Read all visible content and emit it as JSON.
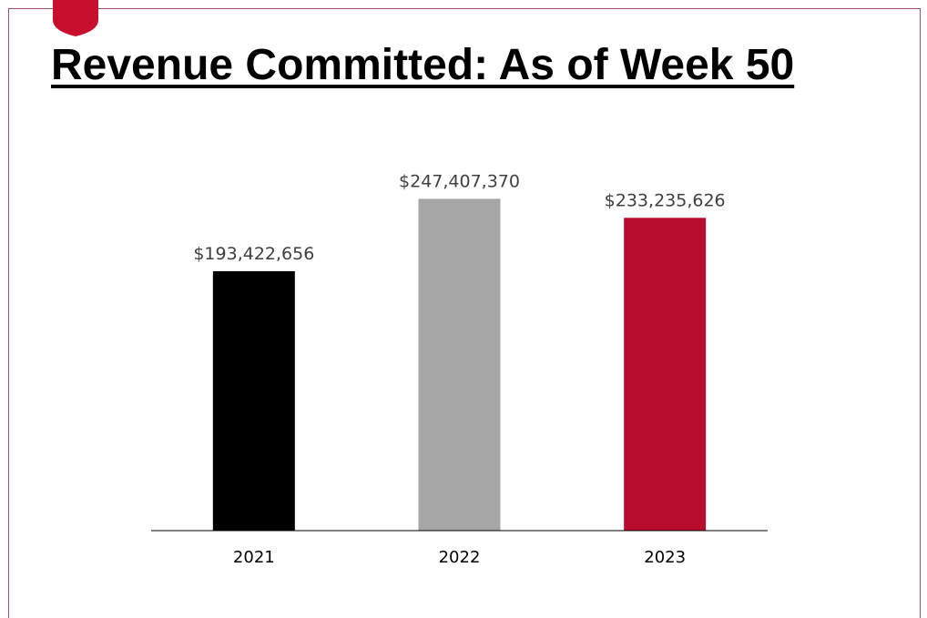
{
  "slide": {
    "title": "Revenue Committed: As of Week 50"
  },
  "colors": {
    "accent": "#b80c2f",
    "frame": "#a0506a"
  },
  "chart_data": {
    "type": "bar",
    "categories": [
      "2021",
      "2022",
      "2023"
    ],
    "values": [
      193422656,
      247407370,
      233235626
    ],
    "data_labels": [
      "$193,422,656",
      "$247,407,370",
      "$233,235,626"
    ],
    "colors": [
      "#000000",
      "#a6a6a6",
      "#b80c2f"
    ],
    "ylim": [
      0,
      250000000
    ],
    "xlabel": "",
    "ylabel": "",
    "grid": false,
    "legend": "none"
  }
}
